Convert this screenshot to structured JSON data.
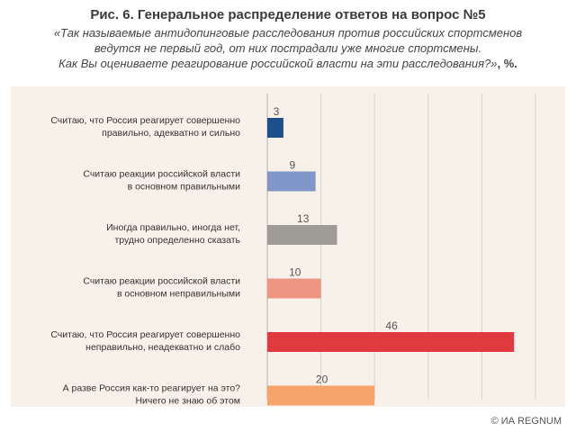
{
  "chart_data": {
    "type": "bar",
    "orientation": "horizontal",
    "title": "Рис. 6. Генеральное распределение ответов на вопрос №5",
    "subtitle_lines": [
      "«Так называемые антидопинговые расследования против российских спортсменов",
      "ведутся не первый год, от них пострадали уже многие спортсмены.",
      "Как Вы оцениваете реагирование российской власти на эти расследования?»"
    ],
    "subtitle_suffix": ", %.",
    "categories": [
      [
        "Считаю, что Россия реагирует совершенно",
        "правильно, адекватно и сильно"
      ],
      [
        "Считаю реакции российской власти",
        "в основном правильными"
      ],
      [
        "Иногда правильно, иногда нет,",
        "трудно определенно сказать"
      ],
      [
        "Считаю реакции российской власти",
        "в основном неправильными"
      ],
      [
        "Считаю, что Россия реагирует совершенно",
        "неправильно, неадекватно и слабо"
      ],
      [
        "А разве Россия как-то реагирует на это?",
        "Ничего не знаю об этом"
      ]
    ],
    "values": [
      3,
      9,
      13,
      10,
      46,
      20
    ],
    "colors": [
      "#1f4e8c",
      "#8196c8",
      "#9f9b97",
      "#ec9682",
      "#e03a3e",
      "#f5a46c"
    ],
    "xlim": [
      0,
      50
    ],
    "grid": true
  },
  "footer": {
    "copyright": "© ИА REGNUM"
  }
}
